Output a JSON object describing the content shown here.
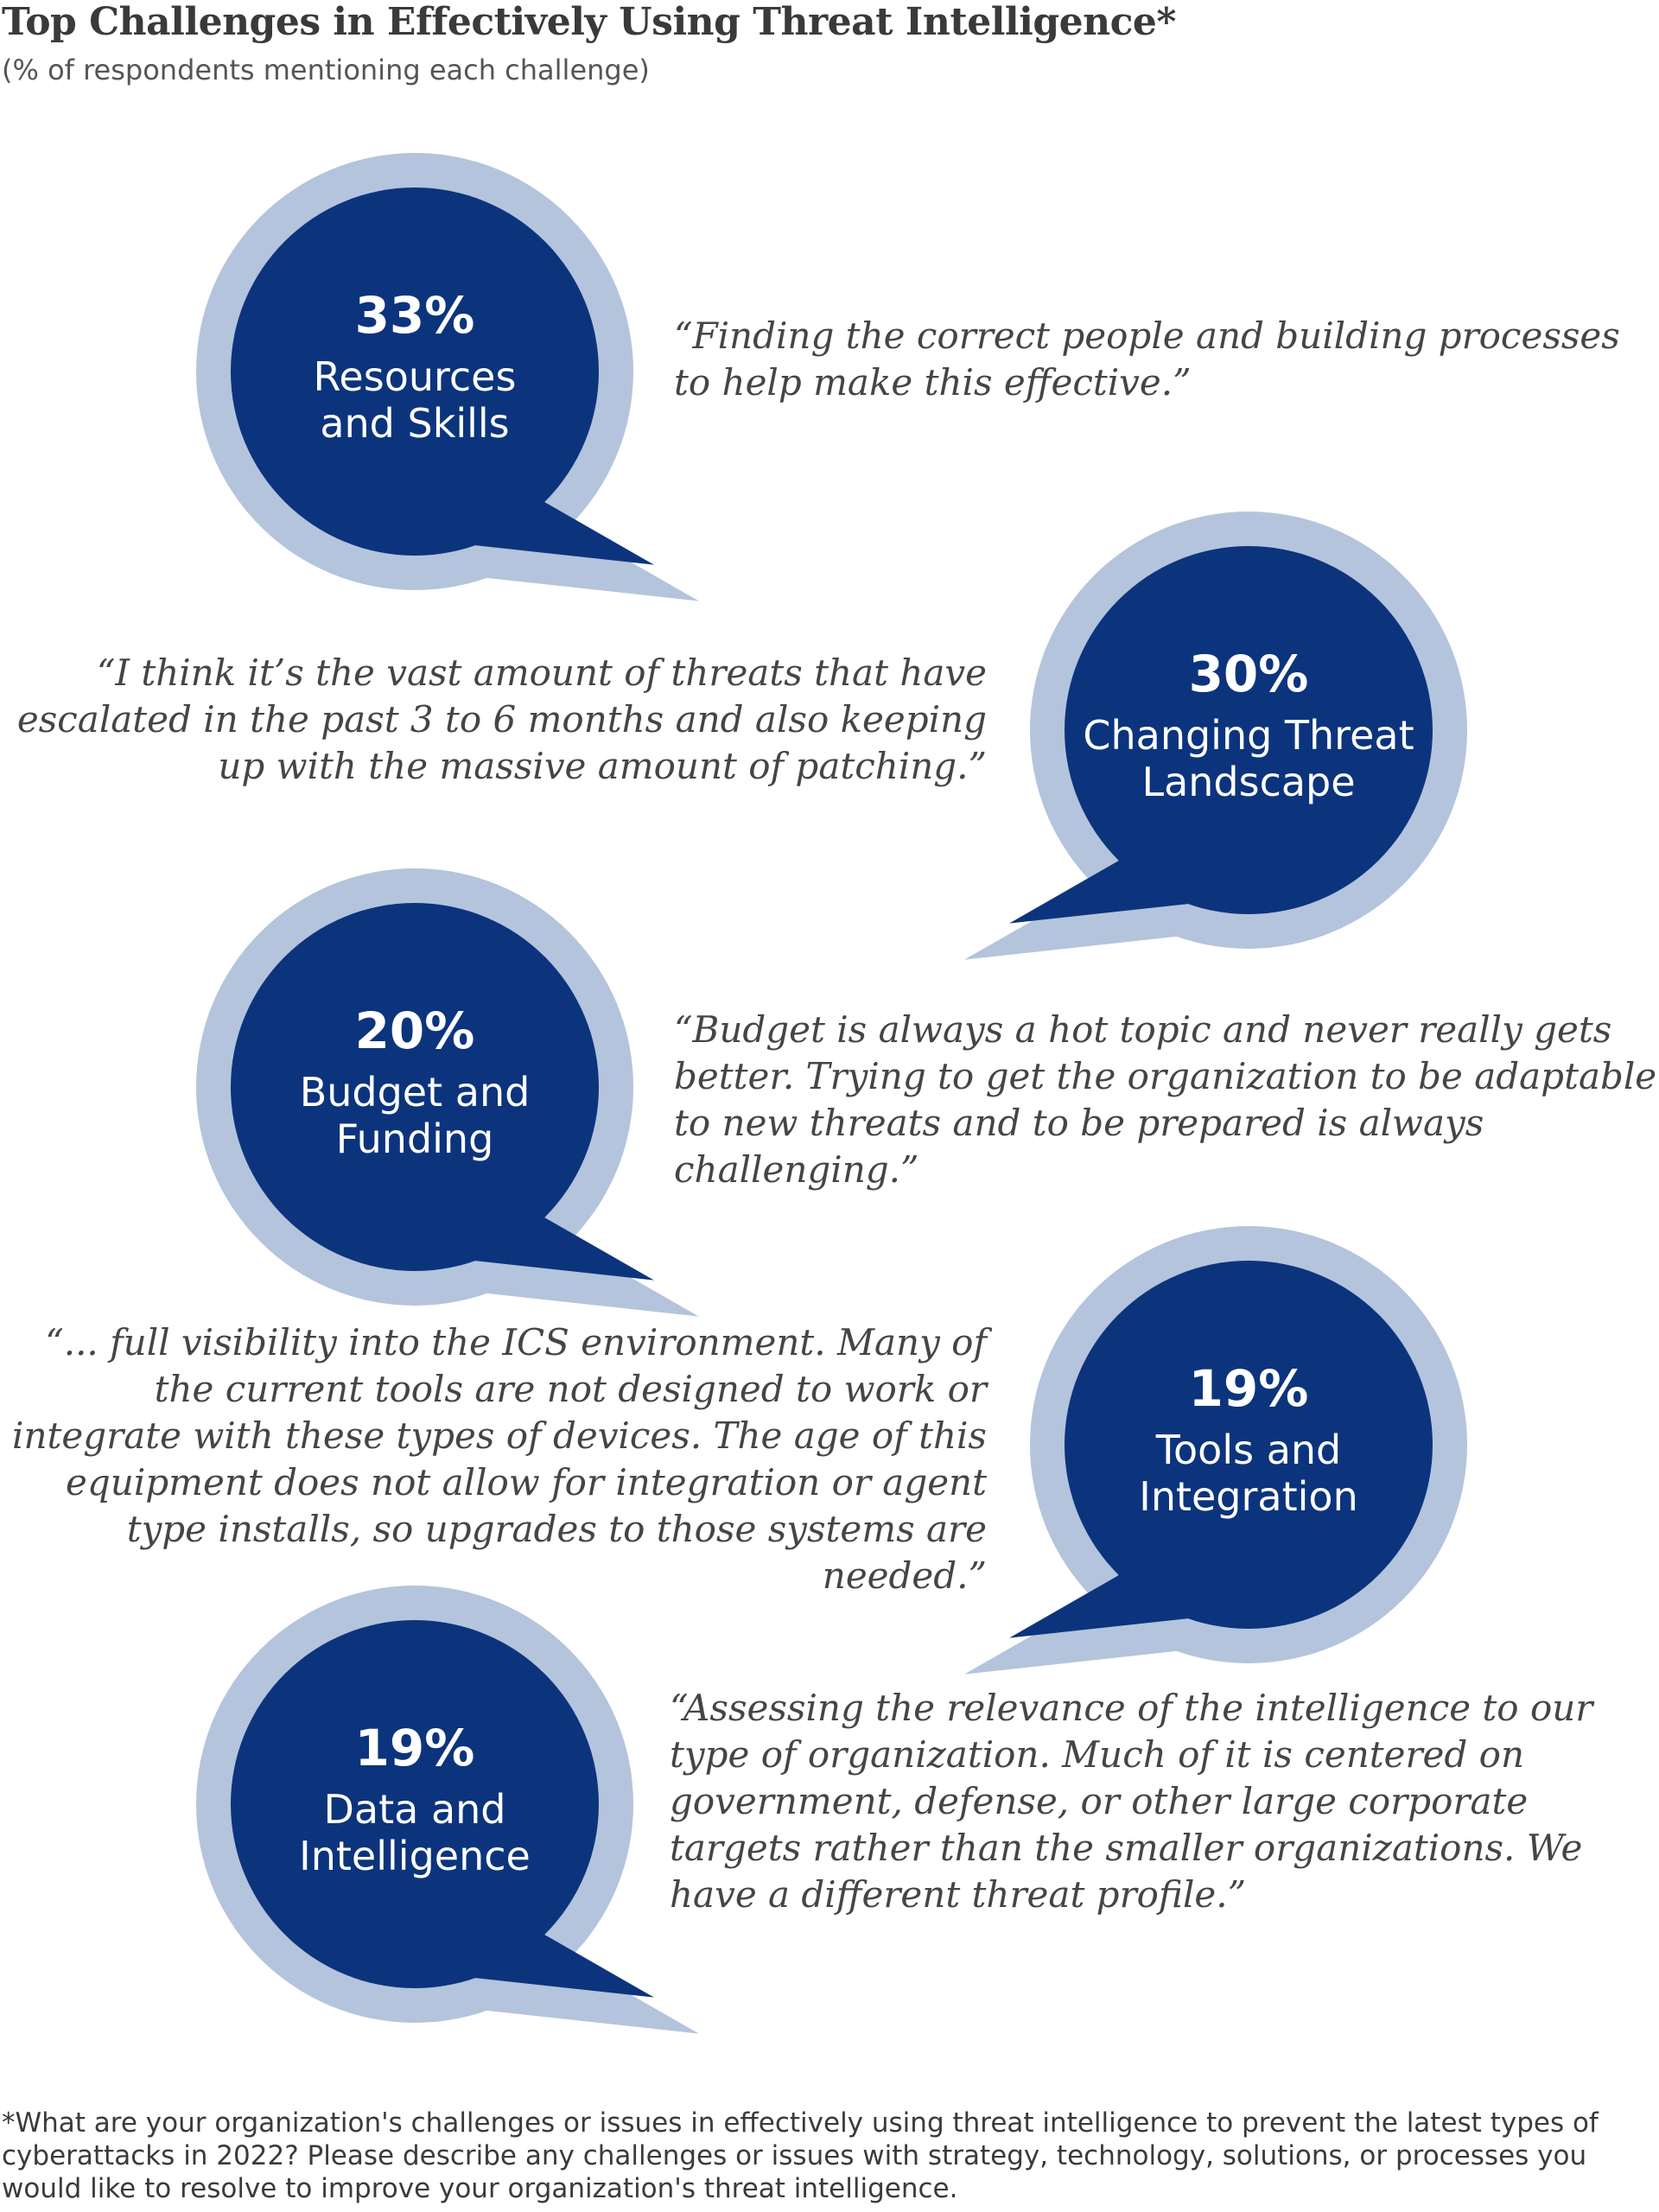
{
  "title": "Top Challenges in Effectively Using Threat Intelligence*",
  "subtitle": "(% of respondents mentioning each challenge)",
  "colors": {
    "bubble_fill": "#0c347d",
    "bubble_ring": "#b4c4dc",
    "text": "#454545"
  },
  "chart_data": {
    "type": "bar",
    "categories": [
      "Resources and Skills",
      "Changing Threat Landscape",
      "Budget and Funding",
      "Tools and Integration",
      "Data and Intelligence"
    ],
    "values": [
      33,
      30,
      20,
      19,
      19
    ],
    "unit": "%",
    "items": [
      {
        "pct": "33%",
        "label_lines": [
          "Resources",
          "and Skills"
        ],
        "side": "left",
        "quote": "“Finding the correct people and building processes to help make this effective.”"
      },
      {
        "pct": "30%",
        "label_lines": [
          "Changing Threat",
          "Landscape"
        ],
        "side": "right",
        "quote": "“I think it’s the vast amount of threats that have escalated in the past 3 to 6 months and also keeping up with the massive amount of patching.”"
      },
      {
        "pct": "20%",
        "label_lines": [
          "Budget and",
          "Funding"
        ],
        "side": "left",
        "quote": "“Budget is always a hot topic and never really gets better. Trying to get the organization to be adaptable to new threats and to be prepared is always challenging.”"
      },
      {
        "pct": "19%",
        "label_lines": [
          "Tools and",
          "Integration"
        ],
        "side": "right",
        "quote": "“... full visibility into the ICS environment. Many of the current tools are not designed to work or integrate with these types of devices. The age of this equipment does not allow for integration or agent type installs, so upgrades to those systems are needed.”"
      },
      {
        "pct": "19%",
        "label_lines": [
          "Data and",
          "Intelligence"
        ],
        "side": "left",
        "quote": "“Assessing the relevance of the intelligence to our type of organization. Much of it is centered on government, defense, or other large corporate targets rather than the smaller organizations. We have a different threat profile.”"
      }
    ]
  },
  "footnote": "*What are your organization's challenges or issues in effectively using threat intelligence to prevent the latest types of cyberattacks in 2022? Please describe any challenges or issues with strategy, technology, solutions, or processes you would like to resolve to improve your organization's threat intelligence."
}
